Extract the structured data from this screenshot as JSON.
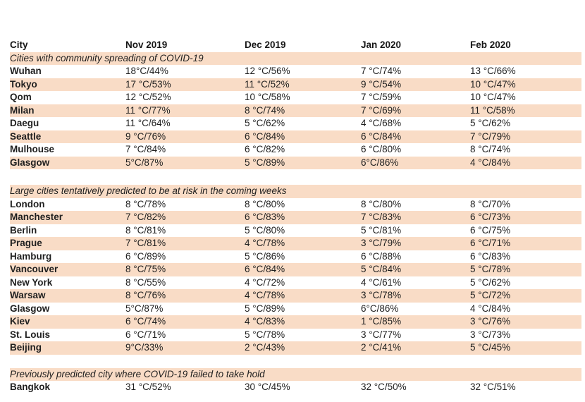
{
  "colors": {
    "stripe": "#f9dcc6",
    "text": "#1f1f1f",
    "background": "#ffffff"
  },
  "table": {
    "columns": [
      "City",
      "Nov 2019",
      "Dec 2019",
      "Jan 2020",
      "Feb 2020"
    ],
    "sections": [
      {
        "title": "Cities with community spreading of COVID-19",
        "rows": [
          {
            "city": "Wuhan",
            "values": [
              "18°C/44%",
              "12 °C/56%",
              "7 °C/74%",
              "13 °C/66%"
            ]
          },
          {
            "city": "Tokyo",
            "values": [
              "17 °C/53%",
              "11 °C/52%",
              "9 °C/54%",
              "10 °C/47%"
            ]
          },
          {
            "city": "Qom",
            "values": [
              "12 °C/52%",
              "10 °C/58%",
              "7 °C/59%",
              "10 °C/47%"
            ]
          },
          {
            "city": "Milan",
            "values": [
              "11 °C/77%",
              "8 °C/74%",
              "7 °C/69%",
              "11 °C/58%"
            ]
          },
          {
            "city": "Daegu",
            "values": [
              "11 °C/64%",
              "5 °C/62%",
              "4 °C/68%",
              "5 °C/62%"
            ]
          },
          {
            "city": "Seattle",
            "values": [
              "9 °C/76%",
              "6 °C/84%",
              "6 °C/84%",
              "7 °C/79%"
            ]
          },
          {
            "city": "Mulhouse",
            "values": [
              "7 °C/84%",
              "6 °C/82%",
              "6 °C/80%",
              "8 °C/74%"
            ]
          },
          {
            "city": "Glasgow",
            "values": [
              "5°C/87%",
              "5 °C/89%",
              "6°C/86%",
              "4 °C/84%"
            ]
          }
        ]
      },
      {
        "title": "Large cities tentatively predicted to be at risk in the coming weeks",
        "rows": [
          {
            "city": "London",
            "values": [
              "8 °C/78%",
              "8 °C/80%",
              "8 °C/80%",
              "8 °C/70%"
            ]
          },
          {
            "city": "Manchester",
            "values": [
              "7 °C/82%",
              "6 °C/83%",
              "7 °C/83%",
              "6 °C/73%"
            ]
          },
          {
            "city": "Berlin",
            "values": [
              "8 °C/81%",
              "5 °C/80%",
              "5 °C/81%",
              "6 °C/75%"
            ]
          },
          {
            "city": "Prague",
            "values": [
              "7 °C/81%",
              "4 °C/78%",
              "3 °C/79%",
              "6 °C/71%"
            ]
          },
          {
            "city": "Hamburg",
            "values": [
              "6 °C/89%",
              "5 °C/86%",
              "6 °C/88%",
              "6 °C/83%"
            ]
          },
          {
            "city": "Vancouver",
            "values": [
              "8 °C/75%",
              "6 °C/84%",
              "5 °C/84%",
              "5 °C/78%"
            ]
          },
          {
            "city": "New York",
            "values": [
              "8 °C/55%",
              "4 °C/72%",
              "4 °C/61%",
              "5 °C/62%"
            ]
          },
          {
            "city": "Warsaw",
            "values": [
              "8 °C/76%",
              "4 °C/78%",
              "3 °C/78%",
              "5 °C/72%"
            ]
          },
          {
            "city": "Glasgow",
            "values": [
              "5°C/87%",
              "5 °C/89%",
              "6°C/86%",
              "4 °C/84%"
            ]
          },
          {
            "city": "Kiev",
            "values": [
              "6 °C/74%",
              "4 °C/83%",
              "1 °C/85%",
              "3 °C/76%"
            ]
          },
          {
            "city": "St. Louis",
            "values": [
              "6 °C/71%",
              "5 °C/78%",
              "3 °C/77%",
              "3 °C/73%"
            ]
          },
          {
            "city": "Beijing",
            "values": [
              "9°C/33%",
              "2 °C/43%",
              "2 °C/41%",
              "5 °C/45%"
            ]
          }
        ]
      },
      {
        "title": "Previously predicted city where COVID-19 failed to take hold",
        "rows": [
          {
            "city": "Bangkok",
            "values": [
              "31 °C/52%",
              "30 °C/45%",
              "32 °C/50%",
              "32 °C/51%"
            ]
          }
        ]
      }
    ]
  }
}
